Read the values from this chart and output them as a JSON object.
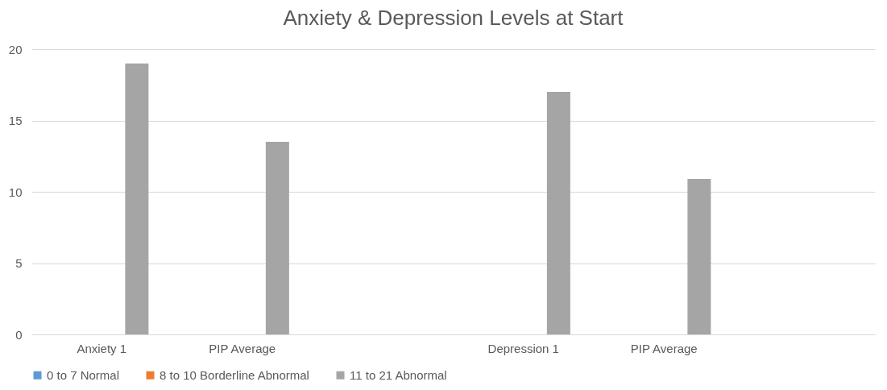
{
  "chart_data": {
    "type": "bar",
    "title": "Anxiety & Depression Levels at Start",
    "categories": [
      "Anxiety 1",
      "PIP Average",
      null,
      "Depression 1",
      "PIP Average",
      null
    ],
    "series": [
      {
        "name": "0 to 7 Normal",
        "color": "#5b9bd5",
        "values": [
          null,
          null,
          null,
          null,
          null,
          null
        ]
      },
      {
        "name": "8 to 10 Borderline Abnormal",
        "color": "#ed7d31",
        "values": [
          null,
          null,
          null,
          null,
          null,
          null
        ]
      },
      {
        "name": "11 to 21 Abnormal",
        "color": "#a5a5a5",
        "values": [
          19,
          13.5,
          null,
          17,
          10.9,
          null
        ]
      }
    ],
    "ylim": [
      0,
      20
    ],
    "yticks": [
      0,
      5,
      10,
      15,
      20
    ],
    "grid": "y",
    "legend": "bottom"
  }
}
